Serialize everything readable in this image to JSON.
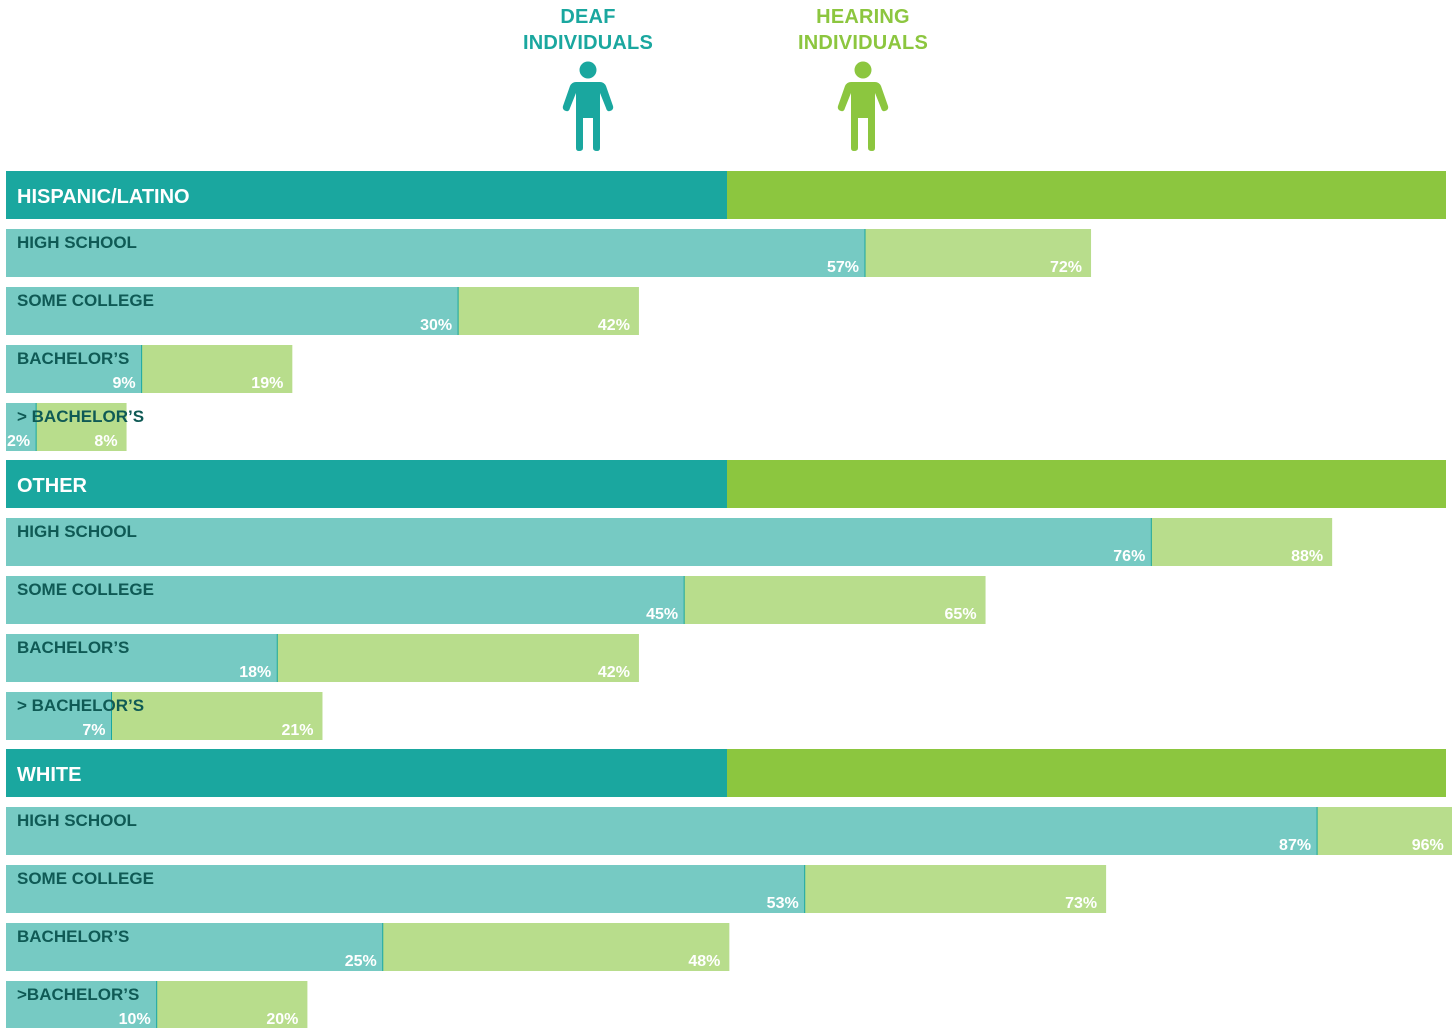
{
  "legend": {
    "deaf_label": "DEAF\nINDIVIDUALS",
    "hearing_label": "HEARING\nINDIVIDUALS",
    "deaf_icon": "person-icon",
    "hearing_icon": "person-icon"
  },
  "colors": {
    "deaf_header": "#1aa79f",
    "hearing_header": "#8cc63f",
    "deaf_bar": "#76cac3",
    "hearing_bar": "#b8dd8c",
    "deaf_text": "#1aa79f",
    "hearing_text": "#8cc63f",
    "label_text": "#0f5a55"
  },
  "chart_data": {
    "type": "bar",
    "orientation": "horizontal",
    "grid": false,
    "xlim": [
      0,
      100
    ],
    "series": [
      {
        "name": "DEAF INDIVIDUALS"
      },
      {
        "name": "HEARING INDIVIDUALS"
      }
    ],
    "groups": [
      {
        "name": "HISPANIC/LATINO",
        "categories": [
          "HIGH SCHOOL",
          "SOME COLLEGE",
          "BACHELOR’S",
          "> BACHELOR’S"
        ],
        "deaf": [
          57,
          30,
          9,
          2
        ],
        "hearing": [
          72,
          42,
          19,
          8
        ]
      },
      {
        "name": "OTHER",
        "categories": [
          "HIGH SCHOOL",
          "SOME COLLEGE",
          "BACHELOR’S",
          "> BACHELOR’S"
        ],
        "deaf": [
          76,
          45,
          18,
          7
        ],
        "hearing": [
          88,
          65,
          42,
          21
        ]
      },
      {
        "name": "WHITE",
        "categories": [
          "HIGH SCHOOL",
          "SOME COLLEGE",
          "BACHELOR’S",
          ">BACHELOR’S"
        ],
        "deaf": [
          87,
          53,
          25,
          10
        ],
        "hearing": [
          96,
          73,
          48,
          20
        ]
      }
    ]
  }
}
